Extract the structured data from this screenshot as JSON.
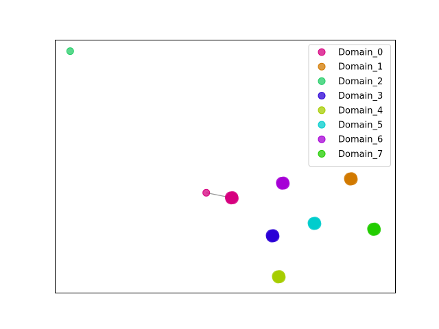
{
  "chart_data": {
    "type": "scatter",
    "title": "",
    "xlabel": "",
    "ylabel": "",
    "xlim": [
      0,
      100
    ],
    "ylim": [
      0,
      100
    ],
    "grid": false,
    "axes_ticks": false,
    "legend_position": "top-right",
    "series": [
      {
        "name": "Domain_0",
        "color": "#d6007f",
        "points": [
          [
            52,
            37.5
          ],
          [
            52.3,
            37.3
          ],
          [
            51.7,
            37.7
          ],
          [
            52.2,
            37.8
          ],
          [
            51.8,
            37.2
          ]
        ]
      },
      {
        "name": "Domain_1",
        "color": "#d17900",
        "points": [
          [
            87,
            45
          ],
          [
            87.3,
            44.8
          ],
          [
            86.7,
            45.2
          ],
          [
            87.2,
            45.3
          ],
          [
            86.8,
            44.7
          ]
        ]
      },
      {
        "name": "Domain_2",
        "color": "#22cc66",
        "points": []
      },
      {
        "name": "Domain_3",
        "color": "#2a00d6",
        "points": [
          [
            64,
            22.5
          ],
          [
            64.3,
            22.3
          ],
          [
            63.7,
            22.7
          ],
          [
            64.2,
            22.8
          ],
          [
            63.8,
            22.2
          ]
        ]
      },
      {
        "name": "Domain_4",
        "color": "#a6cc00",
        "points": [
          [
            65.8,
            6.3
          ],
          [
            66.1,
            6.1
          ],
          [
            65.5,
            6.5
          ],
          [
            66,
            6.6
          ],
          [
            65.6,
            6
          ]
        ]
      },
      {
        "name": "Domain_5",
        "color": "#00cccc",
        "points": [
          [
            76.3,
            27.4
          ],
          [
            76.6,
            27.2
          ],
          [
            76,
            27.6
          ],
          [
            76.5,
            27.7
          ],
          [
            76.1,
            27.1
          ]
        ]
      },
      {
        "name": "Domain_6",
        "color": "#a600d6",
        "points": [
          [
            67,
            43.3
          ],
          [
            67.3,
            43.1
          ],
          [
            66.7,
            43.5
          ],
          [
            67.2,
            43.6
          ],
          [
            66.8,
            43
          ]
        ]
      },
      {
        "name": "Domain_7",
        "color": "#22cc00",
        "points": [
          [
            93.8,
            25.1
          ],
          [
            94.1,
            24.9
          ],
          [
            93.5,
            25.3
          ],
          [
            94,
            25.4
          ],
          [
            93.6,
            24.8
          ]
        ]
      }
    ],
    "outliers": [
      {
        "series": "Domain_0",
        "point": [
          44.5,
          39.5
        ]
      },
      {
        "series": "Domain_2",
        "point": [
          4.5,
          95.5
        ]
      }
    ],
    "connector": {
      "from": [
        44.5,
        39.5
      ],
      "to": [
        52,
        37.5
      ],
      "color": "#999999"
    }
  }
}
